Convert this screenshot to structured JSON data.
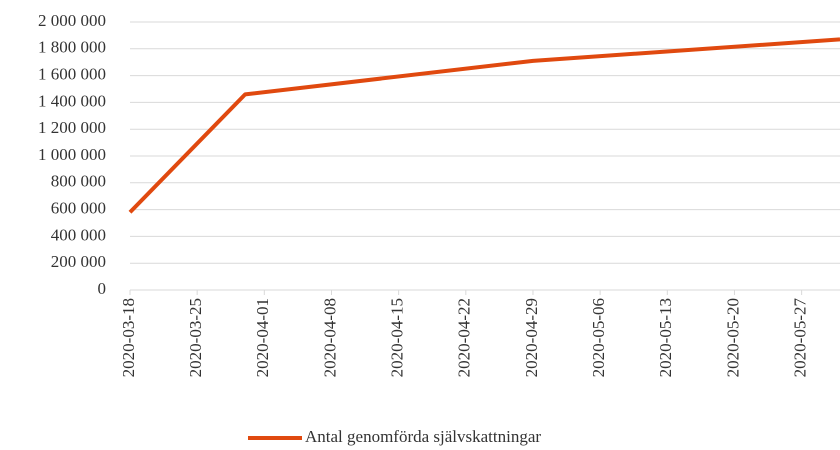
{
  "chart_data": {
    "type": "line",
    "x": [
      "2020-03-18",
      "2020-03-30",
      "2020-04-29",
      "2020-05-31"
    ],
    "series": [
      {
        "name": "Antal genomförda självskattningar",
        "color": "#e0490f",
        "values": [
          580000,
          1460000,
          1710000,
          1870000
        ]
      }
    ],
    "xlim": [
      "2020-03-18",
      "2020-05-31"
    ],
    "xticks": [
      "2020-03-18",
      "2020-03-25",
      "2020-04-01",
      "2020-04-08",
      "2020-04-15",
      "2020-04-22",
      "2020-04-29",
      "2020-05-06",
      "2020-05-13",
      "2020-05-20",
      "2020-05-27"
    ],
    "ylim": [
      0,
      2000000
    ],
    "yticks": [
      0,
      {
        "value": 200000,
        "label": "200 000"
      },
      {
        "value": 400000,
        "label": "400 000"
      },
      {
        "value": 600000,
        "label": "600 000"
      },
      {
        "value": 800000,
        "label": "800 000"
      },
      {
        "value": 1000000,
        "label": "1 000 000"
      },
      {
        "value": 1200000,
        "label": "1 200 000"
      },
      {
        "value": 1400000,
        "label": "1 400 000"
      },
      {
        "value": 1600000,
        "label": "1 600 000"
      },
      {
        "value": 1800000,
        "label": "1 800 000"
      },
      {
        "value": 2000000,
        "label": "2 000 000"
      }
    ],
    "grid": true,
    "legend": "bottom"
  }
}
